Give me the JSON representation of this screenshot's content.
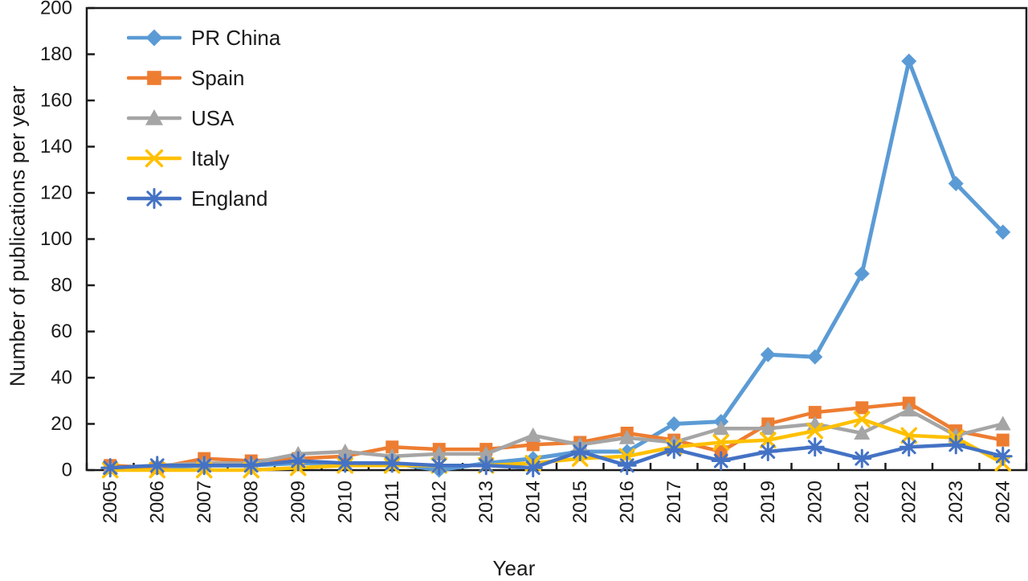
{
  "chart_data": {
    "type": "line",
    "title": "",
    "xlabel": "Year",
    "ylabel": "Number of publications per year",
    "ylim": [
      0,
      200
    ],
    "ytick_step": 20,
    "yticks": [
      0,
      20,
      40,
      60,
      80,
      100,
      120,
      140,
      160,
      180,
      200
    ],
    "grid": false,
    "legend_position": "top-left-inside",
    "categories": [
      "2005",
      "2006",
      "2007",
      "2008",
      "2009",
      "2010",
      "2011",
      "2012",
      "2013",
      "2014",
      "2015",
      "2016",
      "2017",
      "2018",
      "2019",
      "2020",
      "2021",
      "2022",
      "2023",
      "2024"
    ],
    "series": [
      {
        "name": "PR China",
        "color": "#5B9BD5",
        "marker": "diamond",
        "values": [
          1,
          1,
          2,
          2,
          3,
          3,
          3,
          0,
          3,
          5,
          8,
          8,
          20,
          21,
          50,
          49,
          85,
          177,
          124,
          103
        ]
      },
      {
        "name": "Spain",
        "color": "#ED7D31",
        "marker": "square",
        "values": [
          2,
          1,
          5,
          4,
          5,
          6,
          10,
          9,
          9,
          11,
          12,
          16,
          13,
          8,
          20,
          25,
          27,
          29,
          17,
          13
        ]
      },
      {
        "name": "USA",
        "color": "#A5A5A5",
        "marker": "triangle",
        "values": [
          1,
          2,
          3,
          3,
          7,
          8,
          6,
          7,
          7,
          15,
          11,
          14,
          12,
          18,
          18,
          20,
          16,
          26,
          15,
          20
        ]
      },
      {
        "name": "Italy",
        "color": "#FFC000",
        "marker": "x",
        "values": [
          0,
          0,
          0,
          0,
          1,
          2,
          2,
          2,
          2,
          3,
          5,
          6,
          10,
          12,
          13,
          17,
          22,
          15,
          14,
          3
        ]
      },
      {
        "name": "England",
        "color": "#4472C4",
        "marker": "star",
        "values": [
          1,
          2,
          2,
          2,
          4,
          3,
          3,
          2,
          2,
          1,
          8,
          2,
          9,
          4,
          8,
          10,
          5,
          10,
          11,
          6
        ]
      }
    ],
    "axis_color": "#1a1a1a"
  }
}
